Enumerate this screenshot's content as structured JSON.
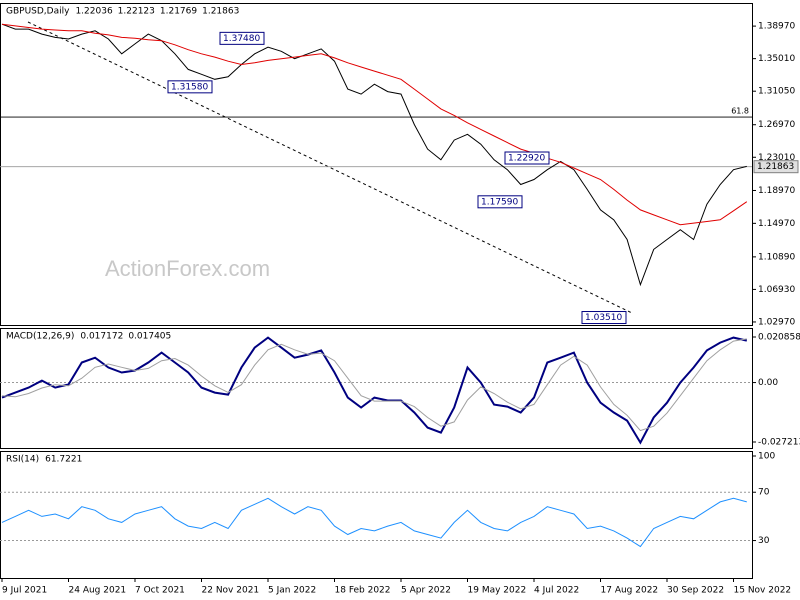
{
  "chart_data": [
    {
      "type": "line",
      "title": "GBPUSD,Daily",
      "header_values": [
        1.22036,
        1.22123,
        1.21769,
        1.21863
      ],
      "watermark": "ActionForex.com",
      "series": [
        {
          "color": "#000000",
          "values": [
            1.392,
            1.386,
            1.386,
            1.38,
            1.376,
            1.374,
            1.38,
            1.384,
            1.374,
            1.356,
            1.368,
            1.38,
            1.372,
            1.356,
            1.337,
            1.331,
            1.325,
            1.328,
            1.343,
            1.356,
            1.364,
            1.359,
            1.35,
            1.356,
            1.362,
            1.347,
            1.313,
            1.307,
            1.319,
            1.31,
            1.307,
            1.27,
            1.24,
            1.227,
            1.251,
            1.258,
            1.246,
            1.227,
            1.215,
            1.197,
            1.203,
            1.215,
            1.225,
            1.215,
            1.191,
            1.166,
            1.154,
            1.13,
            1.075,
            1.118,
            1.13,
            1.142,
            1.13,
            1.173,
            1.197,
            1.215,
            1.219
          ]
        },
        {
          "color": "#e00000",
          "values": [
            1.392,
            1.39,
            1.388,
            1.386,
            1.385,
            1.384,
            1.384,
            1.381,
            1.379,
            1.376,
            1.375,
            1.373,
            1.372,
            1.367,
            1.361,
            1.356,
            1.352,
            1.347,
            1.343,
            1.345,
            1.348,
            1.35,
            1.352,
            1.354,
            1.356,
            1.351,
            1.345,
            1.34,
            1.335,
            1.33,
            1.325,
            1.313,
            1.301,
            1.289,
            1.281,
            1.272,
            1.264,
            1.256,
            1.248,
            1.24,
            1.235,
            1.229,
            1.224,
            1.217,
            1.21,
            1.203,
            1.191,
            1.178,
            1.166,
            1.16,
            1.154,
            1.148,
            1.15,
            1.152,
            1.154,
            1.165,
            1.176
          ]
        }
      ],
      "ylim": [
        1.026,
        1.4166
      ],
      "yticks": [
        {
          "value": 1.3897,
          "label": "1.38970"
        },
        {
          "value": 1.3501,
          "label": "1.35010"
        },
        {
          "value": 1.3105,
          "label": "1.31050"
        },
        {
          "value": 1.2697,
          "label": "1.26970"
        },
        {
          "value": 1.2301,
          "label": "1.23010"
        },
        {
          "value": 1.1897,
          "label": "1.18970"
        },
        {
          "value": 1.1497,
          "label": "1.14970"
        },
        {
          "value": 1.1089,
          "label": "1.10890"
        },
        {
          "value": 1.0693,
          "label": "1.06930"
        },
        {
          "value": 1.0297,
          "label": "1.02970"
        }
      ],
      "levels": [
        {
          "value": 1.279,
          "label": "61.8"
        }
      ],
      "last_price": 1.21863,
      "annotations": [
        {
          "value": 1.3748,
          "label": "1.37480"
        },
        {
          "value": 1.3158,
          "label": "1.31580"
        },
        {
          "value": 1.2292,
          "label": "1.22920"
        },
        {
          "value": 1.1759,
          "label": "1.17590"
        },
        {
          "value": 1.0351,
          "label": "1.03510"
        }
      ]
    },
    {
      "type": "line",
      "title": "MACD(12,26,9)",
      "header_values": [
        0.017172,
        0.017405
      ],
      "series": [
        {
          "color": "#000080",
          "values": [
            -0.0069,
            -0.0046,
            -0.0023,
            0.0009,
            -0.0023,
            -0.0009,
            0.0092,
            0.0114,
            0.0069,
            0.0046,
            0.0055,
            0.0092,
            0.0137,
            0.0092,
            0.0046,
            -0.0023,
            -0.0046,
            -0.0055,
            0.0069,
            0.016,
            0.0206,
            0.016,
            0.0114,
            0.0128,
            0.0147,
            0.0046,
            -0.0069,
            -0.0114,
            -0.0069,
            -0.0082,
            -0.0082,
            -0.0137,
            -0.0206,
            -0.0229,
            -0.0114,
            0.0069,
            0,
            -0.0101,
            -0.011,
            -0.0137,
            -0.0069,
            0.0092,
            0.0114,
            0.0137,
            0,
            -0.0092,
            -0.0137,
            -0.0174,
            -0.0275,
            -0.016,
            -0.0092,
            0,
            0.0069,
            0.0147,
            0.0183,
            0.0206,
            0.0192
          ]
        },
        {
          "color": "#a0a0a0",
          "values": [
            -0.006,
            -0.0065,
            -0.005,
            -0.0025,
            -0.001,
            -0.0015,
            0.002,
            0.007,
            0.0085,
            0.007,
            0.0055,
            0.0065,
            0.01,
            0.011,
            0.008,
            0.003,
            -0.0015,
            -0.0045,
            -0.001,
            0.008,
            0.015,
            0.0175,
            0.015,
            0.013,
            0.0135,
            0.01,
            0.002,
            -0.006,
            -0.0085,
            -0.0085,
            -0.0085,
            -0.011,
            -0.016,
            -0.02,
            -0.018,
            -0.008,
            -0.002,
            -0.005,
            -0.009,
            -0.012,
            -0.01,
            -0.001,
            0.008,
            0.012,
            0.008,
            -0.002,
            -0.01,
            -0.015,
            -0.022,
            -0.02,
            -0.014,
            -0.006,
            0.002,
            0.01,
            0.015,
            0.019,
            0.02
          ]
        }
      ],
      "ylim": [
        -0.02996,
        0.02452
      ],
      "yticks": [
        0.020858,
        {
          "value": 0,
          "label": "0.00"
        },
        -0.027213
      ],
      "levels": [
        0
      ]
    },
    {
      "type": "line",
      "title": "RSI(14)",
      "header_values": [
        61.7221
      ],
      "series": [
        {
          "color": "#1e90ff",
          "values": [
            45,
            50,
            55,
            50,
            52,
            48,
            58,
            55,
            48,
            45,
            52,
            55,
            58,
            48,
            42,
            40,
            45,
            40,
            55,
            60,
            65,
            58,
            52,
            58,
            55,
            42,
            35,
            40,
            38,
            42,
            45,
            38,
            35,
            32,
            45,
            55,
            45,
            40,
            38,
            45,
            50,
            58,
            55,
            52,
            40,
            42,
            38,
            32,
            25,
            40,
            45,
            50,
            48,
            55,
            62,
            65,
            62
          ]
        }
      ],
      "ylim": [
        -1,
        103.3
      ],
      "yticks": [
        100,
        70,
        30
      ],
      "levels": [
        70,
        30
      ],
      "categories": [
        "9 Jul 2021",
        null,
        null,
        null,
        null,
        "24 Aug 2021",
        null,
        null,
        null,
        null,
        "7 Oct 2021",
        null,
        null,
        null,
        null,
        "22 Nov 2021",
        null,
        null,
        null,
        null,
        "5 Jan 2022",
        null,
        null,
        null,
        null,
        "18 Feb 2022",
        null,
        null,
        null,
        null,
        "5 Apr 2022",
        null,
        null,
        null,
        null,
        "19 May 2022",
        null,
        null,
        null,
        null,
        "4 Jul 2022",
        null,
        null,
        null,
        null,
        "17 Aug 2022",
        null,
        null,
        null,
        null,
        "30 Sep 2022",
        null,
        null,
        null,
        null,
        "15 Nov 2022",
        null
      ]
    }
  ]
}
